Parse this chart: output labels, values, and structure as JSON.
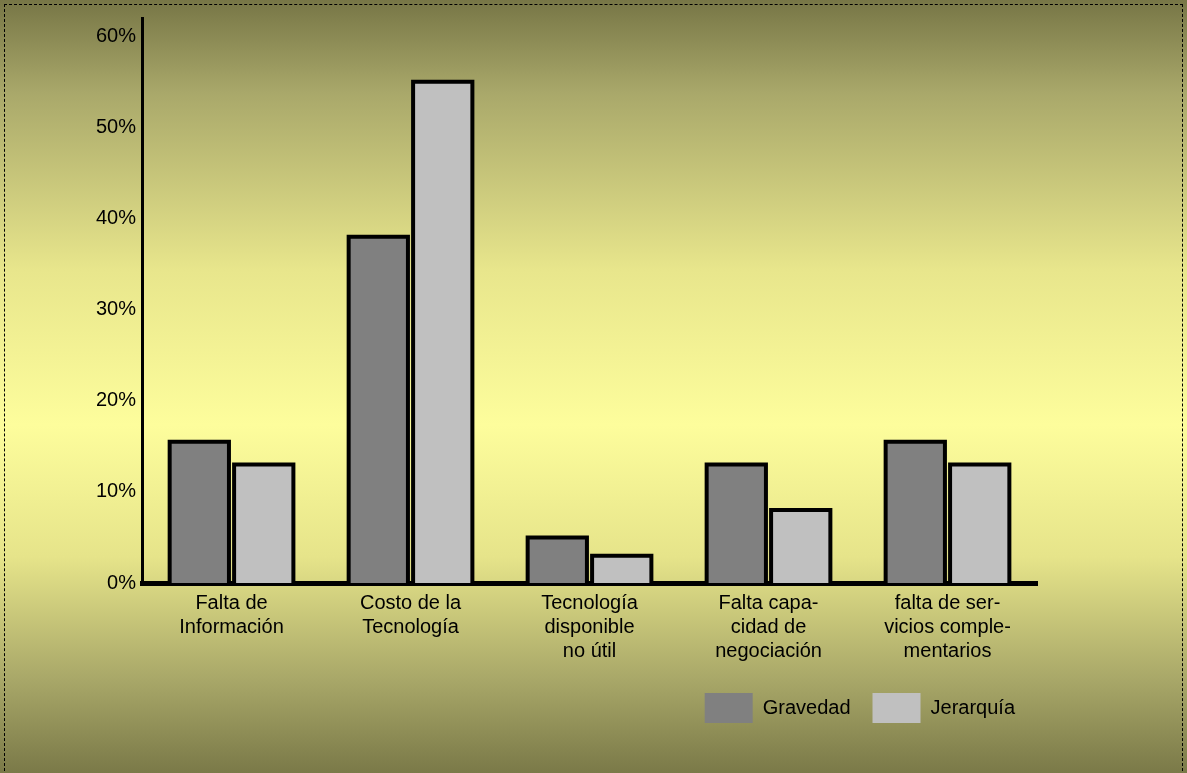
{
  "chart_data": {
    "type": "bar",
    "categories": [
      "Falta de\nInformación",
      "Costo de la\nTecnología",
      "Tecnología\ndisponible\nno útil",
      "Falta capa-\ncidad de\nnegociación",
      "falta de ser-\nvicios comple-\nmentarios"
    ],
    "series": [
      {
        "name": "Gravedad",
        "color": "#808080",
        "values": [
          15.5,
          38,
          5,
          13,
          15.5
        ]
      },
      {
        "name": "Jerarquía",
        "color": "#c0c0c0",
        "values": [
          13,
          55,
          3,
          8,
          13
        ]
      }
    ],
    "ylim": [
      0,
      62
    ],
    "yticks": [
      {
        "value": 0,
        "label": "0%"
      },
      {
        "value": 10,
        "label": "10%"
      },
      {
        "value": 20,
        "label": "20%"
      },
      {
        "value": 30,
        "label": "30%"
      },
      {
        "value": 40,
        "label": "40%"
      },
      {
        "value": 50,
        "label": "50%"
      },
      {
        "value": 60,
        "label": "60%"
      }
    ],
    "grid": false,
    "legend": "bottom right"
  }
}
